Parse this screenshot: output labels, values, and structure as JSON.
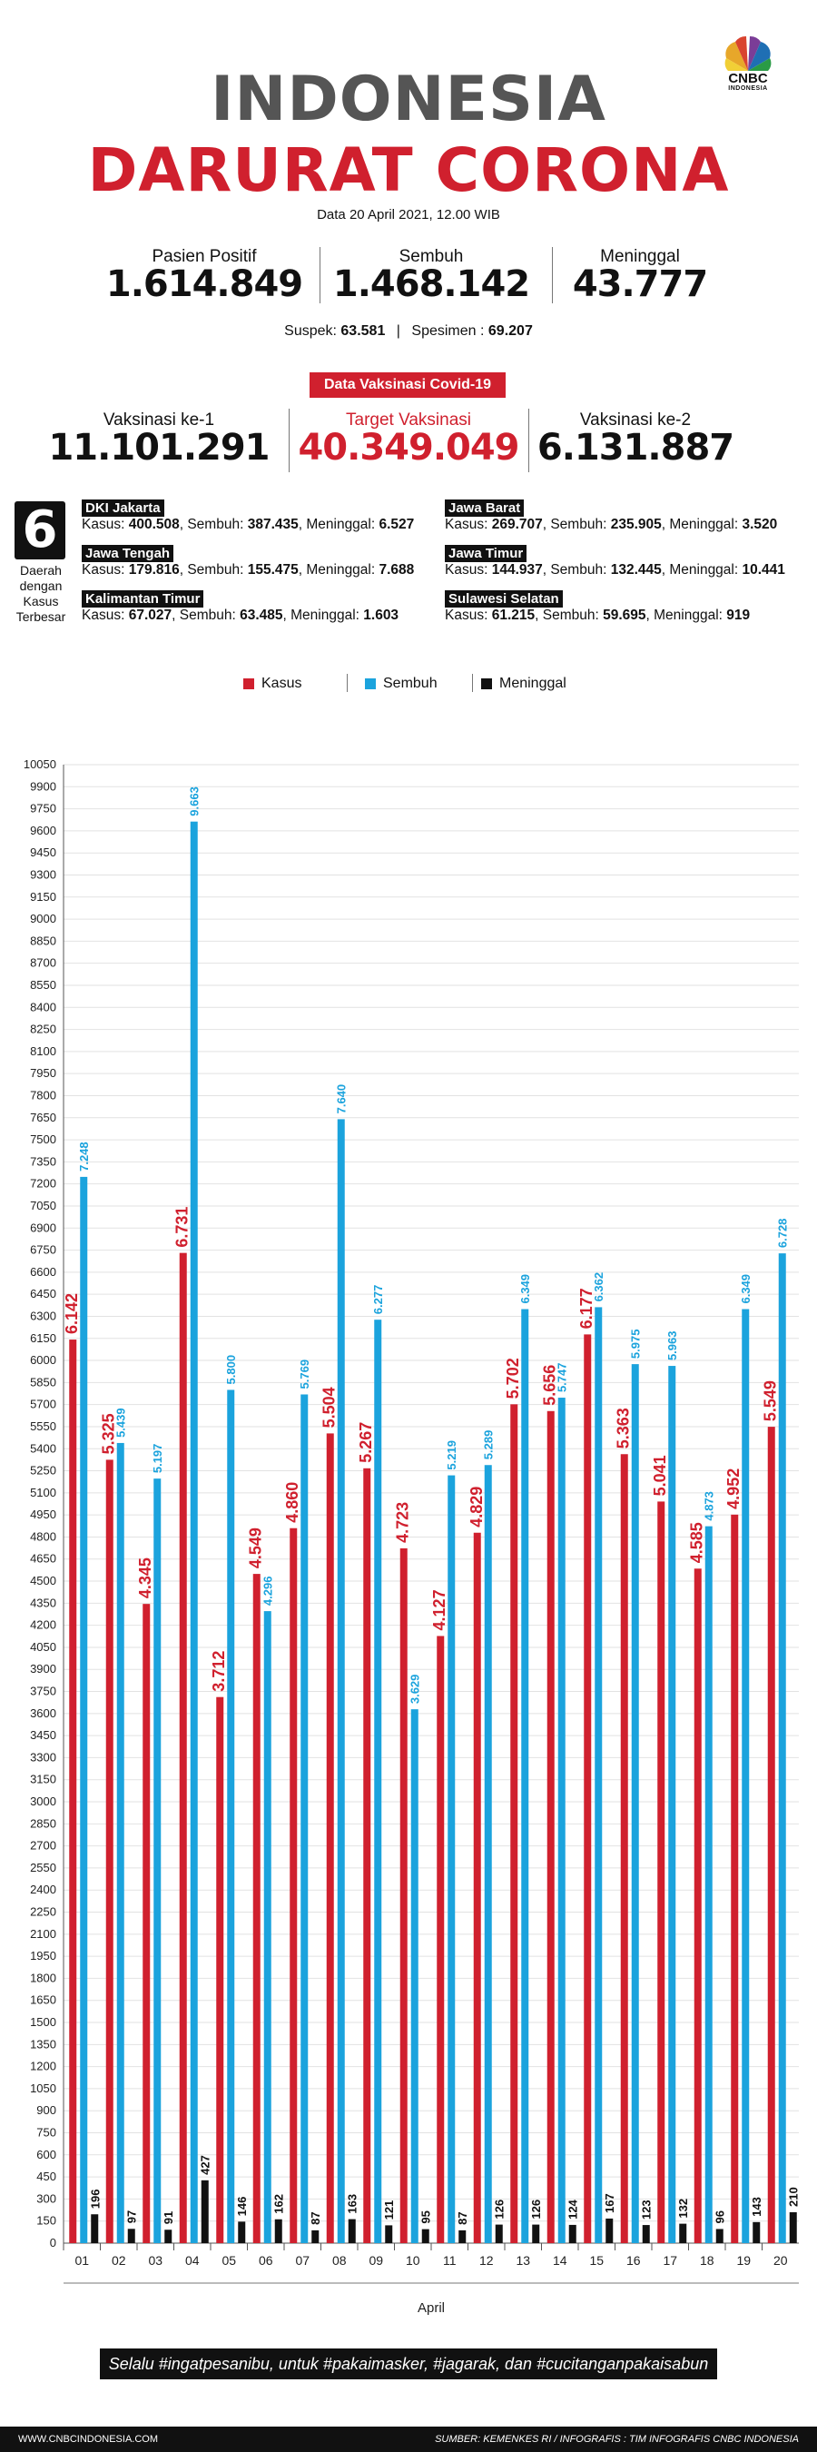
{
  "logo": {
    "name": "CNBC",
    "sub": "INDONESIA"
  },
  "title_line1": "INDONESIA",
  "title_line2": "DARURAT CORONA",
  "date": "Data 20 April 2021, 12.00 WIB",
  "stats": [
    {
      "label": "Pasien Positif",
      "value": "1.614.849"
    },
    {
      "label": "Sembuh",
      "value": "1.468.142"
    },
    {
      "label": "Meninggal",
      "value": "43.777"
    }
  ],
  "suspek_label": "Suspek:",
  "suspek_value": "63.581",
  "spesimen_label": "Spesimen :",
  "spesimen_value": "69.207",
  "vaccine_tag": "Data Vaksinasi Covid-19",
  "vaccine": [
    {
      "label": "Vaksinasi ke-1",
      "value": "11.101.291",
      "color": "#111111"
    },
    {
      "label": "Target Vaksinasi",
      "value": "40.349.049",
      "color": "#d0202e"
    },
    {
      "label": "Vaksinasi ke-2",
      "value": "6.131.887",
      "color": "#111111"
    }
  ],
  "regions_count": "6",
  "regions_note": "Daerah dengan Kasus Terbesar",
  "regions": [
    {
      "name": "DKI Jakarta",
      "kasus": "400.508",
      "sembuh": "387.435",
      "meninggal": "6.527"
    },
    {
      "name": "Jawa Barat",
      "kasus": "269.707",
      "sembuh": "235.905",
      "meninggal": "3.520"
    },
    {
      "name": "Jawa Tengah",
      "kasus": "179.816",
      "sembuh": "155.475",
      "meninggal": "7.688"
    },
    {
      "name": "Jawa Timur",
      "kasus": "144.937",
      "sembuh": "132.445",
      "meninggal": "10.441"
    },
    {
      "name": "Kalimantan Timur",
      "kasus": "67.027",
      "sembuh": "63.485",
      "meninggal": "1.603"
    },
    {
      "name": "Sulawesi Selatan",
      "kasus": "61.215",
      "sembuh": "59.695",
      "meninggal": "919"
    }
  ],
  "region_fields": {
    "kasus": "Kasus:",
    "sembuh": "Sembuh:",
    "meninggal": "Meninggal:"
  },
  "colors": {
    "kasus": "#d0202e",
    "sembuh": "#1ba3dd",
    "meninggal": "#111111"
  },
  "chart_data": {
    "type": "bar",
    "categories": [
      "01",
      "02",
      "03",
      "04",
      "05",
      "06",
      "07",
      "08",
      "09",
      "10",
      "11",
      "12",
      "13",
      "14",
      "15",
      "16",
      "17",
      "18",
      "19",
      "20"
    ],
    "series": [
      {
        "name": "Kasus",
        "values": [
          6142,
          5325,
          4345,
          6731,
          3712,
          4549,
          4860,
          5504,
          5267,
          4723,
          4127,
          4829,
          5702,
          5656,
          6177,
          5363,
          5041,
          4585,
          4952,
          5549
        ]
      },
      {
        "name": "Sembuh",
        "values": [
          7248,
          5439,
          5197,
          9663,
          5800,
          4296,
          5769,
          7640,
          6277,
          3629,
          5219,
          5289,
          6349,
          5747,
          6362,
          5975,
          5963,
          4873,
          6349,
          6728
        ]
      },
      {
        "name": "Meninggal",
        "values": [
          196,
          97,
          91,
          427,
          146,
          162,
          87,
          163,
          121,
          95,
          87,
          126,
          126,
          124,
          167,
          123,
          132,
          96,
          143,
          210
        ]
      }
    ],
    "value_labels": {
      "Kasus": [
        "6.142",
        "5.325",
        "4.345",
        "6.731",
        "3.712",
        "4.549",
        "4.860",
        "5.504",
        "5.267",
        "4.723",
        "4.127",
        "4.829",
        "5.702",
        "5.656",
        "6.177",
        "5.363",
        "5.041",
        "4.585",
        "4.952",
        "5.549"
      ],
      "Sembuh": [
        "7.248",
        "5.439",
        "5.197",
        "9.663",
        "5.800",
        "4.296",
        "5.769",
        "7.640",
        "6.277",
        "3.629",
        "5.219",
        "5.289",
        "6.349",
        "5.747",
        "6.362",
        "5.975",
        "5.963",
        "4.873",
        "6.349",
        "6.728"
      ],
      "Meninggal": [
        "196",
        "97",
        "91",
        "427",
        "146",
        "162",
        "87",
        "163",
        "121",
        "95",
        "87",
        "126",
        "126",
        "124",
        "167",
        "123",
        "132",
        "96",
        "143",
        "210"
      ]
    },
    "xlabel": "April",
    "ylim": [
      0,
      10050
    ],
    "ytick_step": 150,
    "grid": true,
    "legend_position": "top-center"
  },
  "footer_message": "Selalu #ingatpesanibu, untuk #pakaimasker, #jagarak, dan #cucitanganpakaisabun",
  "footer_site": "WWW.CNBCINDONESIA.COM",
  "footer_source": "SUMBER: KEMENKES RI / INFOGRAFIS : TIM INFOGRAFIS CNBC INDONESIA"
}
